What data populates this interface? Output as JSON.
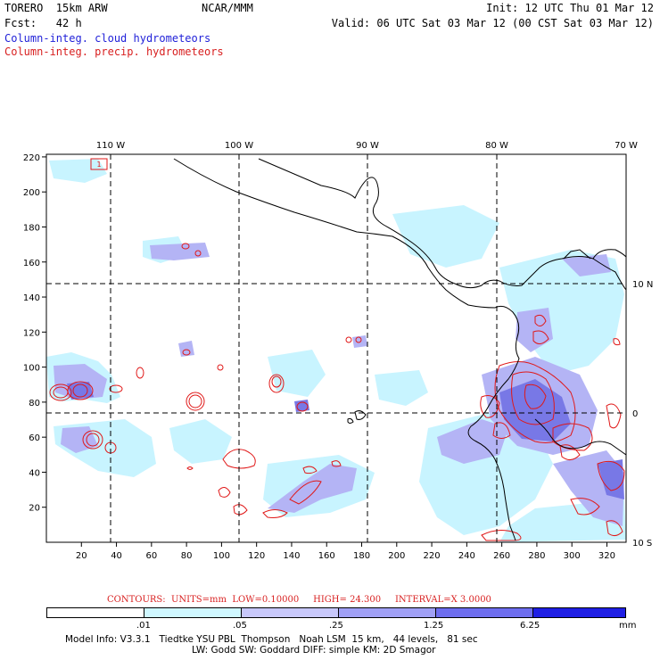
{
  "header": {
    "model": "TORERO  15km ARW",
    "org": "NCAR/MMM",
    "init": "Init: 12 UTC Thu 01 Mar 12",
    "fcst": "Fcst:   42 h",
    "valid": "Valid: 06 UTC Sat 03 Mar 12 (00 CST Sat 03 Mar 12)",
    "legend_cloud": "Column-integ. cloud hydrometeors",
    "legend_precip": "Column-integ. precip. hydrometeors"
  },
  "map": {
    "lon_labels": [
      "110 W",
      "100 W",
      "90 W",
      "80 W",
      "70 W"
    ],
    "lat_labels": [
      "10 N",
      "0",
      "10 S"
    ],
    "x_ticks": [
      "20",
      "40",
      "60",
      "80",
      "100",
      "120",
      "140",
      "160",
      "180",
      "200",
      "220",
      "240",
      "260",
      "280",
      "300",
      "320"
    ],
    "y_ticks": [
      "20",
      "40",
      "60",
      "80",
      "100",
      "120",
      "140",
      "160",
      "180",
      "200",
      "220"
    ],
    "box_label": "1",
    "colors": {
      "cloud_light": "#c8f4ff",
      "cloud_mid": "#b4b4f5",
      "cloud_dark": "#7878e6",
      "precip": "#e01818",
      "coast": "#000000"
    }
  },
  "contours_line": {
    "prefix": "CONTOURS:  UNITS=mm  LOW=",
    "low": "0.10000",
    "high_label": "HIGH=",
    "high": "24.300",
    "interval_label": "INTERVAL=X",
    "interval": "3.0000"
  },
  "colorbar": {
    "labels": [
      ".01",
      ".05",
      ".25",
      "1.25",
      "6.25"
    ],
    "unit": "mm",
    "colors": [
      "#ffffff",
      "#cff7ff",
      "#c8c8fa",
      "#a0a0f5",
      "#6e6eef",
      "#3c3ce8",
      "#1414e0"
    ]
  },
  "footer": {
    "line1": "Model Info: V3.3.1   Tiedtke YSU PBL  Thompson   Noah LSM  15 km,   44 levels,   81 sec",
    "line2": "LW: Godd SW: Goddard DIFF: simple KM: 2D Smagor"
  }
}
